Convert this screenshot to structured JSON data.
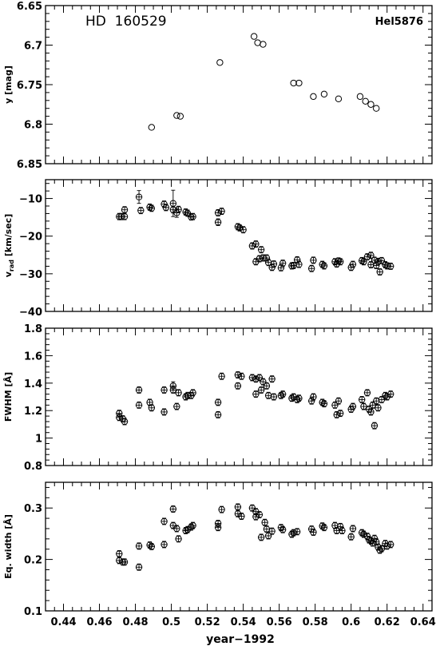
{
  "figure": {
    "object_label": "HD  160529",
    "id_label": "Hel5876",
    "xlabel": "year−1992"
  },
  "chart_data": [
    {
      "type": "scatter",
      "id": "y_mag",
      "ylabel": "y  [mag]",
      "xlim": [
        0.43,
        0.645
      ],
      "ylim": [
        6.85,
        6.65
      ],
      "yticks": [
        6.65,
        6.7,
        6.75,
        6.8,
        6.85
      ],
      "ytick_labels": [
        "6.65",
        "6.7",
        "6.75",
        "6.8",
        "6.85"
      ],
      "error_bars": false,
      "points": [
        {
          "x": 0.489,
          "y": 6.804
        },
        {
          "x": 0.503,
          "y": 6.789
        },
        {
          "x": 0.505,
          "y": 6.79
        },
        {
          "x": 0.527,
          "y": 6.722
        },
        {
          "x": 0.546,
          "y": 6.689
        },
        {
          "x": 0.548,
          "y": 6.697
        },
        {
          "x": 0.551,
          "y": 6.699
        },
        {
          "x": 0.568,
          "y": 6.748
        },
        {
          "x": 0.571,
          "y": 6.748
        },
        {
          "x": 0.579,
          "y": 6.765
        },
        {
          "x": 0.585,
          "y": 6.762
        },
        {
          "x": 0.593,
          "y": 6.768
        },
        {
          "x": 0.605,
          "y": 6.765
        },
        {
          "x": 0.608,
          "y": 6.771
        },
        {
          "x": 0.611,
          "y": 6.775
        },
        {
          "x": 0.614,
          "y": 6.78
        }
      ]
    },
    {
      "type": "scatter",
      "id": "vrad",
      "ylabel": "v",
      "ylabel_sub": "rad",
      "ylabel_unit": " [km/sec]",
      "xlim": [
        0.43,
        0.645
      ],
      "ylim": [
        -40,
        -5
      ],
      "yticks": [
        -10,
        -20,
        -30,
        -40
      ],
      "ytick_labels": [
        "−10",
        "−20",
        "−30",
        "−40"
      ],
      "error_bars": true,
      "points": [
        {
          "x": 0.471,
          "y": -14.8,
          "e": 0.6
        },
        {
          "x": 0.472,
          "y": -14.8,
          "e": 0.6
        },
        {
          "x": 0.474,
          "y": -14.8,
          "e": 0.6
        },
        {
          "x": 0.474,
          "y": -13.0,
          "e": 0.6
        },
        {
          "x": 0.482,
          "y": -9.6,
          "e": 1.7
        },
        {
          "x": 0.483,
          "y": -13.2,
          "e": 0.6
        },
        {
          "x": 0.488,
          "y": -12.3,
          "e": 0.6
        },
        {
          "x": 0.489,
          "y": -12.6,
          "e": 0.6
        },
        {
          "x": 0.496,
          "y": -11.5,
          "e": 0.8
        },
        {
          "x": 0.497,
          "y": -12.4,
          "e": 0.6
        },
        {
          "x": 0.501,
          "y": -11.3,
          "e": 3.5
        },
        {
          "x": 0.501,
          "y": -13.0,
          "e": 0.6
        },
        {
          "x": 0.503,
          "y": -13.8,
          "e": 1.2
        },
        {
          "x": 0.504,
          "y": -12.9,
          "e": 0.6
        },
        {
          "x": 0.508,
          "y": -13.6,
          "e": 0.6
        },
        {
          "x": 0.509,
          "y": -13.9,
          "e": 0.6
        },
        {
          "x": 0.511,
          "y": -14.9,
          "e": 0.6
        },
        {
          "x": 0.512,
          "y": -14.8,
          "e": 0.6
        },
        {
          "x": 0.526,
          "y": -16.3,
          "e": 0.9
        },
        {
          "x": 0.526,
          "y": -13.8,
          "e": 0.6
        },
        {
          "x": 0.528,
          "y": -13.4,
          "e": 0.6
        },
        {
          "x": 0.537,
          "y": -17.5,
          "e": 0.6
        },
        {
          "x": 0.538,
          "y": -17.8,
          "e": 0.6
        },
        {
          "x": 0.54,
          "y": -18.3,
          "e": 0.6
        },
        {
          "x": 0.545,
          "y": -22.6,
          "e": 0.6
        },
        {
          "x": 0.547,
          "y": -22.1,
          "e": 0.6
        },
        {
          "x": 0.547,
          "y": -26.8,
          "e": 0.6
        },
        {
          "x": 0.549,
          "y": -26.0,
          "e": 0.6
        },
        {
          "x": 0.55,
          "y": -23.6,
          "e": 0.7
        },
        {
          "x": 0.551,
          "y": -25.8,
          "e": 0.6
        },
        {
          "x": 0.553,
          "y": -25.8,
          "e": 0.6
        },
        {
          "x": 0.554,
          "y": -27.0,
          "e": 0.6
        },
        {
          "x": 0.556,
          "y": -28.3,
          "e": 0.6
        },
        {
          "x": 0.557,
          "y": -27.4,
          "e": 0.6
        },
        {
          "x": 0.561,
          "y": -28.4,
          "e": 0.6
        },
        {
          "x": 0.562,
          "y": -27.2,
          "e": 0.6
        },
        {
          "x": 0.567,
          "y": -27.9,
          "e": 0.6
        },
        {
          "x": 0.568,
          "y": -27.8,
          "e": 0.6
        },
        {
          "x": 0.57,
          "y": -26.3,
          "e": 0.6
        },
        {
          "x": 0.571,
          "y": -27.5,
          "e": 0.6
        },
        {
          "x": 0.578,
          "y": -28.6,
          "e": 0.6
        },
        {
          "x": 0.579,
          "y": -26.4,
          "e": 0.8
        },
        {
          "x": 0.584,
          "y": -27.5,
          "e": 0.6
        },
        {
          "x": 0.585,
          "y": -27.9,
          "e": 0.6
        },
        {
          "x": 0.591,
          "y": -26.8,
          "e": 0.6
        },
        {
          "x": 0.592,
          "y": -27.4,
          "e": 0.6
        },
        {
          "x": 0.593,
          "y": -26.6,
          "e": 0.6
        },
        {
          "x": 0.594,
          "y": -26.8,
          "e": 0.6
        },
        {
          "x": 0.6,
          "y": -28.3,
          "e": 0.6
        },
        {
          "x": 0.601,
          "y": -27.5,
          "e": 0.6
        },
        {
          "x": 0.606,
          "y": -26.5,
          "e": 0.6
        },
        {
          "x": 0.607,
          "y": -26.8,
          "e": 0.6
        },
        {
          "x": 0.609,
          "y": -25.5,
          "e": 0.6
        },
        {
          "x": 0.611,
          "y": -25.1,
          "e": 0.6
        },
        {
          "x": 0.611,
          "y": -27.6,
          "e": 0.6
        },
        {
          "x": 0.613,
          "y": -26.4,
          "e": 0.6
        },
        {
          "x": 0.614,
          "y": -27.8,
          "e": 0.6
        },
        {
          "x": 0.615,
          "y": -26.7,
          "e": 0.6
        },
        {
          "x": 0.616,
          "y": -29.5,
          "e": 0.6
        },
        {
          "x": 0.617,
          "y": -26.5,
          "e": 0.6
        },
        {
          "x": 0.619,
          "y": -27.6,
          "e": 0.6
        },
        {
          "x": 0.62,
          "y": -27.9,
          "e": 0.6
        },
        {
          "x": 0.622,
          "y": -28.0,
          "e": 0.6
        }
      ]
    },
    {
      "type": "scatter",
      "id": "fwhm",
      "ylabel": "FWHM  [Å]",
      "xlim": [
        0.43,
        0.645
      ],
      "ylim": [
        0.8,
        1.8
      ],
      "yticks": [
        0.8,
        1,
        1.2,
        1.4,
        1.6,
        1.8
      ],
      "ytick_labels": [
        "0.8",
        "1",
        "1.2",
        "1.4",
        "1.6",
        "1.8"
      ],
      "error_bars": true,
      "points": [
        {
          "x": 0.471,
          "y": 1.18,
          "e": 0.01
        },
        {
          "x": 0.471,
          "y": 1.15,
          "e": 0.01
        },
        {
          "x": 0.473,
          "y": 1.14,
          "e": 0.01
        },
        {
          "x": 0.474,
          "y": 1.12,
          "e": 0.01
        },
        {
          "x": 0.482,
          "y": 1.35,
          "e": 0.01
        },
        {
          "x": 0.482,
          "y": 1.24,
          "e": 0.01
        },
        {
          "x": 0.488,
          "y": 1.26,
          "e": 0.01
        },
        {
          "x": 0.489,
          "y": 1.22,
          "e": 0.01
        },
        {
          "x": 0.496,
          "y": 1.35,
          "e": 0.01
        },
        {
          "x": 0.496,
          "y": 1.19,
          "e": 0.01
        },
        {
          "x": 0.501,
          "y": 1.38,
          "e": 0.03
        },
        {
          "x": 0.501,
          "y": 1.35,
          "e": 0.01
        },
        {
          "x": 0.503,
          "y": 1.23,
          "e": 0.01
        },
        {
          "x": 0.504,
          "y": 1.33,
          "e": 0.01
        },
        {
          "x": 0.508,
          "y": 1.3,
          "e": 0.01
        },
        {
          "x": 0.509,
          "y": 1.31,
          "e": 0.01
        },
        {
          "x": 0.511,
          "y": 1.31,
          "e": 0.01
        },
        {
          "x": 0.512,
          "y": 1.33,
          "e": 0.01
        },
        {
          "x": 0.526,
          "y": 1.26,
          "e": 0.01
        },
        {
          "x": 0.526,
          "y": 1.17,
          "e": 0.01
        },
        {
          "x": 0.528,
          "y": 1.45,
          "e": 0.01
        },
        {
          "x": 0.537,
          "y": 1.46,
          "e": 0.01
        },
        {
          "x": 0.537,
          "y": 1.38,
          "e": 0.01
        },
        {
          "x": 0.539,
          "y": 1.45,
          "e": 0.01
        },
        {
          "x": 0.545,
          "y": 1.44,
          "e": 0.01
        },
        {
          "x": 0.547,
          "y": 1.43,
          "e": 0.01
        },
        {
          "x": 0.547,
          "y": 1.32,
          "e": 0.01
        },
        {
          "x": 0.549,
          "y": 1.44,
          "e": 0.01
        },
        {
          "x": 0.55,
          "y": 1.35,
          "e": 0.01
        },
        {
          "x": 0.551,
          "y": 1.41,
          "e": 0.01
        },
        {
          "x": 0.553,
          "y": 1.38,
          "e": 0.01
        },
        {
          "x": 0.554,
          "y": 1.31,
          "e": 0.01
        },
        {
          "x": 0.556,
          "y": 1.43,
          "e": 0.01
        },
        {
          "x": 0.557,
          "y": 1.3,
          "e": 0.01
        },
        {
          "x": 0.561,
          "y": 1.31,
          "e": 0.01
        },
        {
          "x": 0.562,
          "y": 1.32,
          "e": 0.01
        },
        {
          "x": 0.567,
          "y": 1.29,
          "e": 0.01
        },
        {
          "x": 0.568,
          "y": 1.3,
          "e": 0.01
        },
        {
          "x": 0.57,
          "y": 1.28,
          "e": 0.01
        },
        {
          "x": 0.571,
          "y": 1.29,
          "e": 0.01
        },
        {
          "x": 0.578,
          "y": 1.27,
          "e": 0.01
        },
        {
          "x": 0.579,
          "y": 1.3,
          "e": 0.01
        },
        {
          "x": 0.584,
          "y": 1.26,
          "e": 0.01
        },
        {
          "x": 0.585,
          "y": 1.25,
          "e": 0.01
        },
        {
          "x": 0.591,
          "y": 1.24,
          "e": 0.01
        },
        {
          "x": 0.592,
          "y": 1.17,
          "e": 0.01
        },
        {
          "x": 0.593,
          "y": 1.27,
          "e": 0.01
        },
        {
          "x": 0.594,
          "y": 1.18,
          "e": 0.01
        },
        {
          "x": 0.6,
          "y": 1.21,
          "e": 0.01
        },
        {
          "x": 0.601,
          "y": 1.23,
          "e": 0.01
        },
        {
          "x": 0.606,
          "y": 1.28,
          "e": 0.01
        },
        {
          "x": 0.607,
          "y": 1.23,
          "e": 0.01
        },
        {
          "x": 0.609,
          "y": 1.33,
          "e": 0.01
        },
        {
          "x": 0.61,
          "y": 1.21,
          "e": 0.01
        },
        {
          "x": 0.611,
          "y": 1.19,
          "e": 0.01
        },
        {
          "x": 0.612,
          "y": 1.24,
          "e": 0.01
        },
        {
          "x": 0.613,
          "y": 1.09,
          "e": 0.01
        },
        {
          "x": 0.614,
          "y": 1.27,
          "e": 0.01
        },
        {
          "x": 0.615,
          "y": 1.22,
          "e": 0.01
        },
        {
          "x": 0.617,
          "y": 1.28,
          "e": 0.01
        },
        {
          "x": 0.619,
          "y": 1.31,
          "e": 0.01
        },
        {
          "x": 0.62,
          "y": 1.3,
          "e": 0.01
        },
        {
          "x": 0.622,
          "y": 1.32,
          "e": 0.01
        }
      ]
    },
    {
      "type": "scatter",
      "id": "eqwidth",
      "ylabel": "Eq.  width  [Å]",
      "xlim": [
        0.43,
        0.645
      ],
      "ylim": [
        0.1,
        0.35
      ],
      "yticks": [
        0.1,
        0.2,
        0.3
      ],
      "ytick_labels": [
        "0.1",
        "0.2",
        "0.3"
      ],
      "xticks": [
        0.44,
        0.46,
        0.48,
        0.5,
        0.52,
        0.54,
        0.56,
        0.58,
        0.6,
        0.62,
        0.64
      ],
      "xtick_labels": [
        "0.44",
        "0.46",
        "0.48",
        "0.5",
        "0.52",
        "0.54",
        "0.56",
        "0.58",
        "0.6",
        "0.62",
        "0.64"
      ],
      "error_bars": true,
      "points": [
        {
          "x": 0.471,
          "y": 0.211,
          "e": 0.002
        },
        {
          "x": 0.471,
          "y": 0.198,
          "e": 0.002
        },
        {
          "x": 0.473,
          "y": 0.195,
          "e": 0.002
        },
        {
          "x": 0.474,
          "y": 0.195,
          "e": 0.002
        },
        {
          "x": 0.482,
          "y": 0.226,
          "e": 0.002
        },
        {
          "x": 0.482,
          "y": 0.185,
          "e": 0.002
        },
        {
          "x": 0.488,
          "y": 0.228,
          "e": 0.002
        },
        {
          "x": 0.489,
          "y": 0.225,
          "e": 0.002
        },
        {
          "x": 0.496,
          "y": 0.274,
          "e": 0.002
        },
        {
          "x": 0.496,
          "y": 0.229,
          "e": 0.002
        },
        {
          "x": 0.501,
          "y": 0.298,
          "e": 0.004
        },
        {
          "x": 0.501,
          "y": 0.266,
          "e": 0.002
        },
        {
          "x": 0.503,
          "y": 0.26,
          "e": 0.002
        },
        {
          "x": 0.504,
          "y": 0.24,
          "e": 0.002
        },
        {
          "x": 0.508,
          "y": 0.256,
          "e": 0.002
        },
        {
          "x": 0.509,
          "y": 0.258,
          "e": 0.002
        },
        {
          "x": 0.511,
          "y": 0.263,
          "e": 0.002
        },
        {
          "x": 0.512,
          "y": 0.266,
          "e": 0.002
        },
        {
          "x": 0.526,
          "y": 0.27,
          "e": 0.002
        },
        {
          "x": 0.526,
          "y": 0.262,
          "e": 0.002
        },
        {
          "x": 0.528,
          "y": 0.297,
          "e": 0.002
        },
        {
          "x": 0.537,
          "y": 0.302,
          "e": 0.002
        },
        {
          "x": 0.537,
          "y": 0.289,
          "e": 0.002
        },
        {
          "x": 0.539,
          "y": 0.284,
          "e": 0.002
        },
        {
          "x": 0.545,
          "y": 0.3,
          "e": 0.002
        },
        {
          "x": 0.547,
          "y": 0.293,
          "e": 0.002
        },
        {
          "x": 0.547,
          "y": 0.283,
          "e": 0.002
        },
        {
          "x": 0.549,
          "y": 0.287,
          "e": 0.002
        },
        {
          "x": 0.55,
          "y": 0.243,
          "e": 0.002
        },
        {
          "x": 0.552,
          "y": 0.272,
          "e": 0.002
        },
        {
          "x": 0.553,
          "y": 0.259,
          "e": 0.002
        },
        {
          "x": 0.554,
          "y": 0.246,
          "e": 0.002
        },
        {
          "x": 0.556,
          "y": 0.255,
          "e": 0.002
        },
        {
          "x": 0.561,
          "y": 0.262,
          "e": 0.002
        },
        {
          "x": 0.562,
          "y": 0.258,
          "e": 0.002
        },
        {
          "x": 0.567,
          "y": 0.249,
          "e": 0.002
        },
        {
          "x": 0.568,
          "y": 0.252,
          "e": 0.002
        },
        {
          "x": 0.57,
          "y": 0.254,
          "e": 0.002
        },
        {
          "x": 0.578,
          "y": 0.259,
          "e": 0.002
        },
        {
          "x": 0.579,
          "y": 0.253,
          "e": 0.002
        },
        {
          "x": 0.584,
          "y": 0.265,
          "e": 0.002
        },
        {
          "x": 0.585,
          "y": 0.262,
          "e": 0.002
        },
        {
          "x": 0.591,
          "y": 0.266,
          "e": 0.002
        },
        {
          "x": 0.592,
          "y": 0.256,
          "e": 0.002
        },
        {
          "x": 0.594,
          "y": 0.264,
          "e": 0.002
        },
        {
          "x": 0.595,
          "y": 0.256,
          "e": 0.002
        },
        {
          "x": 0.6,
          "y": 0.244,
          "e": 0.002
        },
        {
          "x": 0.601,
          "y": 0.26,
          "e": 0.002
        },
        {
          "x": 0.606,
          "y": 0.252,
          "e": 0.002
        },
        {
          "x": 0.607,
          "y": 0.249,
          "e": 0.002
        },
        {
          "x": 0.609,
          "y": 0.245,
          "e": 0.002
        },
        {
          "x": 0.61,
          "y": 0.238,
          "e": 0.002
        },
        {
          "x": 0.611,
          "y": 0.236,
          "e": 0.002
        },
        {
          "x": 0.612,
          "y": 0.232,
          "e": 0.002
        },
        {
          "x": 0.613,
          "y": 0.241,
          "e": 0.002
        },
        {
          "x": 0.614,
          "y": 0.234,
          "e": 0.002
        },
        {
          "x": 0.615,
          "y": 0.224,
          "e": 0.002
        },
        {
          "x": 0.616,
          "y": 0.218,
          "e": 0.002
        },
        {
          "x": 0.617,
          "y": 0.221,
          "e": 0.002
        },
        {
          "x": 0.619,
          "y": 0.231,
          "e": 0.002
        },
        {
          "x": 0.62,
          "y": 0.226,
          "e": 0.002
        },
        {
          "x": 0.622,
          "y": 0.229,
          "e": 0.002
        }
      ]
    }
  ]
}
